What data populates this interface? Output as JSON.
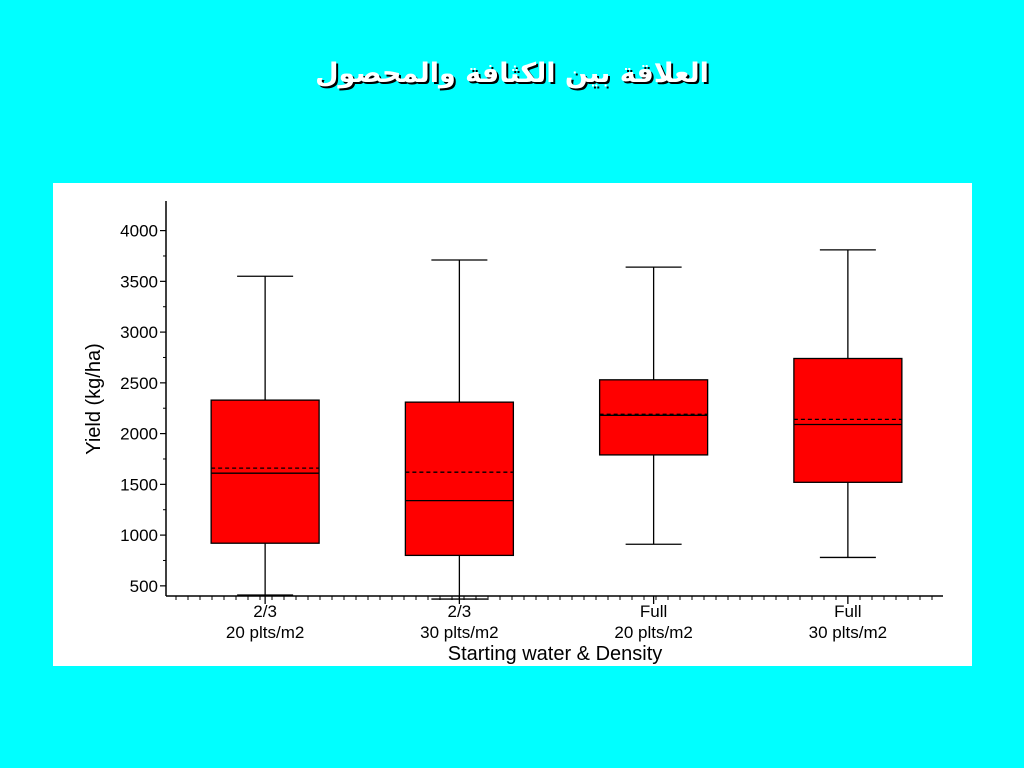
{
  "slide": {
    "title": "العلاقة بين الكثافة والمحصول",
    "background_color": "#00FFFF",
    "title_color": "#FFFFFF"
  },
  "chart_data": {
    "type": "box",
    "title": "",
    "xlabel": "Starting water & Density",
    "ylabel": "Yield (kg/ha)",
    "ylim": [
      400,
      4200
    ],
    "yticks": [
      500,
      1000,
      1500,
      2000,
      2500,
      3000,
      3500,
      4000
    ],
    "box_color": "#FF0000",
    "categories": [
      {
        "line1": "2/3",
        "line2": "20 plts/m2"
      },
      {
        "line1": "2/3",
        "line2": "30 plts/m2"
      },
      {
        "line1": "Full",
        "line2": "20 plts/m2"
      },
      {
        "line1": "Full",
        "line2": "30 plts/m2"
      }
    ],
    "boxes": [
      {
        "min": 410,
        "q1": 920,
        "median": 1610,
        "mean": 1660,
        "q3": 2330,
        "max": 3550
      },
      {
        "min": 370,
        "q1": 800,
        "median": 1340,
        "mean": 1620,
        "q3": 2310,
        "max": 3710
      },
      {
        "min": 910,
        "q1": 1790,
        "median": 2180,
        "mean": 2190,
        "q3": 2530,
        "max": 3640
      },
      {
        "min": 780,
        "q1": 1520,
        "median": 2090,
        "mean": 2140,
        "q3": 2740,
        "max": 3810
      }
    ]
  }
}
